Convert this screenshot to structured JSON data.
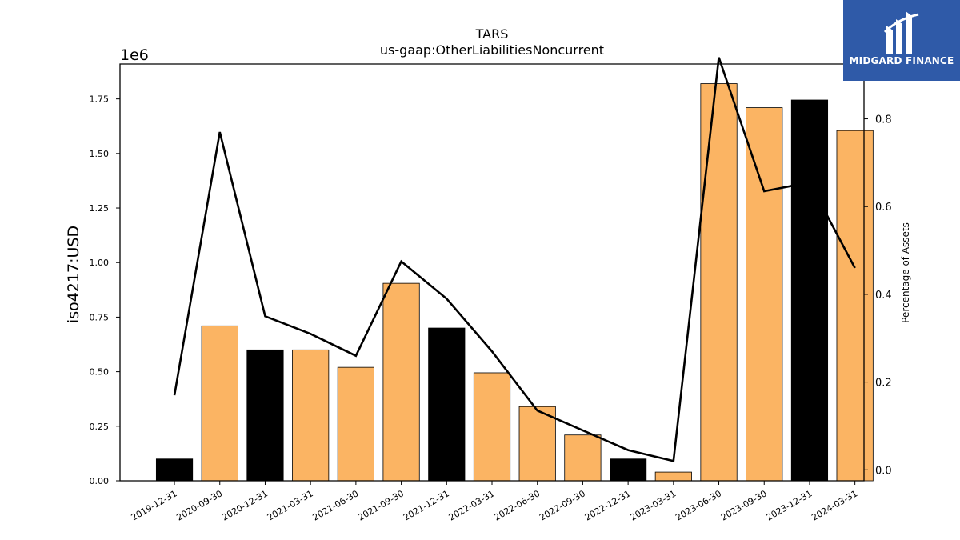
{
  "chart_data": {
    "type": "bar",
    "title": "TARS",
    "subtitle": "us-gaap:OtherLiabilitiesNoncurrent",
    "ylabel": "iso4217:USD",
    "y2label": "Percentage of Assets",
    "y_offset_label": "1e6",
    "categories": [
      "2019-12-31",
      "2020-09-30",
      "2020-12-31",
      "2021-03-31",
      "2021-06-30",
      "2021-09-30",
      "2021-12-31",
      "2022-03-31",
      "2022-06-30",
      "2022-09-30",
      "2022-12-31",
      "2023-03-31",
      "2023-06-30",
      "2023-09-30",
      "2023-12-31",
      "2024-03-31"
    ],
    "values": [
      0.1,
      0.71,
      0.6,
      0.6,
      0.52,
      0.905,
      0.7,
      0.495,
      0.34,
      0.21,
      0.1,
      0.04,
      1.82,
      1.71,
      1.745,
      1.605
    ],
    "bar_colors": [
      "#000000",
      "#fbb463",
      "#000000",
      "#fbb463",
      "#fbb463",
      "#fbb463",
      "#000000",
      "#fbb463",
      "#fbb463",
      "#fbb463",
      "#000000",
      "#fbb463",
      "#fbb463",
      "#fbb463",
      "#000000",
      "#fbb463"
    ],
    "line_values": [
      0.17,
      0.77,
      0.35,
      0.31,
      0.26,
      0.475,
      0.39,
      0.27,
      0.135,
      0.09,
      0.045,
      0.02,
      0.94,
      0.635,
      0.655,
      0.46
    ],
    "ylim": [
      0,
      1.91
    ],
    "y_ticks": [
      "0.00",
      "0.25",
      "0.50",
      "0.75",
      "1.00",
      "1.25",
      "1.50",
      "1.75"
    ],
    "y2lim": [
      -0.025,
      0.925
    ],
    "y2_ticks": [
      "0.0",
      "0.2",
      "0.4",
      "0.6",
      "0.8"
    ],
    "grid": false,
    "line_color": "#000000"
  },
  "logo": {
    "text": "MIDGARD FINANCE",
    "bg": "#2f5aa8"
  }
}
